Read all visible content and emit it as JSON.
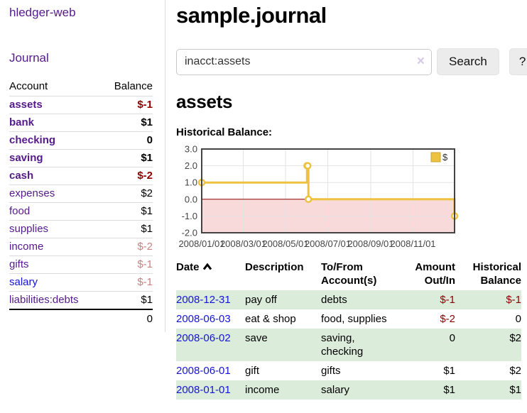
{
  "app": {
    "brand": "hledger-web",
    "nav": {
      "journal": "Journal"
    }
  },
  "sidebar": {
    "header": {
      "account": "Account",
      "balance": "Balance"
    },
    "accounts": [
      {
        "name": "assets",
        "balance": "$-1",
        "depth": 1,
        "matched": true
      },
      {
        "name": "bank",
        "balance": "$1",
        "depth": 2,
        "matched": true
      },
      {
        "name": "checking",
        "balance": "0",
        "depth": 3,
        "matched": true
      },
      {
        "name": "saving",
        "balance": "$1",
        "depth": 3,
        "matched": true
      },
      {
        "name": "cash",
        "balance": "$-2",
        "depth": 2,
        "matched": true
      },
      {
        "name": "expenses",
        "balance": "$2",
        "depth": 1,
        "matched": false
      },
      {
        "name": "food",
        "balance": "$1",
        "depth": 2,
        "matched": false
      },
      {
        "name": "supplies",
        "balance": "$1",
        "depth": 2,
        "matched": false
      },
      {
        "name": "income",
        "balance": "$-2",
        "depth": 1,
        "matched": false
      },
      {
        "name": "gifts",
        "balance": "$-1",
        "depth": 2,
        "matched": false
      },
      {
        "name": "salary",
        "balance": "$-1",
        "depth": 2,
        "matched": false
      },
      {
        "name": "liabilities:debts",
        "balance": "$1",
        "depth": 1,
        "matched": false
      }
    ],
    "total": "0"
  },
  "main": {
    "title": "sample.journal",
    "search": {
      "value": "inacct:assets",
      "clear_icon": "×",
      "search_button": "Search",
      "help_button": "?"
    },
    "account_heading": "assets",
    "chart_label": "Historical Balance:"
  },
  "chart_data": {
    "type": "line",
    "title": "Historical Balance:",
    "step": true,
    "series": [
      {
        "name": "$",
        "points": [
          [
            "2008-01-01",
            1
          ],
          [
            "2008-06-01",
            2
          ],
          [
            "2008-06-02",
            2
          ],
          [
            "2008-06-03",
            0
          ],
          [
            "2008-12-31",
            -1
          ]
        ]
      }
    ],
    "x_ticks": [
      "2008/01/01",
      "2008/03/01",
      "2008/05/01",
      "2008/07/01",
      "2008/09/01",
      "2008/11/01"
    ],
    "y_ticks": [
      3.0,
      2.0,
      1.0,
      0.0,
      -1.0,
      -2.0
    ],
    "xlim": [
      "2008-01-01",
      "2008-12-31"
    ],
    "ylim": [
      -2,
      3
    ],
    "grid": true,
    "legend": {
      "label": "$",
      "position": "top-right"
    },
    "colors": {
      "line": "#edc240",
      "negative_fill": "#f9dada",
      "zero_line": "#8b0000",
      "grid": "#e3e3e3",
      "border": "#434343",
      "legend_box_border": "#c9a42f"
    }
  },
  "transactions": {
    "headers": {
      "date": "Date",
      "sort_icon": "chevron-up",
      "description": "Description",
      "accounts_line1": "To/From",
      "accounts_line2": "Account(s)",
      "amount_line1": "Amount",
      "amount_line2": "Out/In",
      "balance_line1": "Historical",
      "balance_line2": "Balance"
    },
    "rows": [
      {
        "date": "2008-12-31",
        "description": "pay off",
        "accounts": "debts",
        "amount": "$-1",
        "balance": "$-1"
      },
      {
        "date": "2008-06-03",
        "description": "eat & shop",
        "accounts": "food, supplies",
        "amount": "$-2",
        "balance": "0"
      },
      {
        "date": "2008-06-02",
        "description": "save",
        "accounts": "saving, checking",
        "amount": "0",
        "balance": "$2"
      },
      {
        "date": "2008-06-01",
        "description": "gift",
        "accounts": "gifts",
        "amount": "$1",
        "balance": "$2"
      },
      {
        "date": "2008-01-01",
        "description": "income",
        "accounts": "salary",
        "amount": "$1",
        "balance": "$1"
      }
    ]
  },
  "colors": {
    "link_purple": "#551a8b",
    "link_blue": "#1414d2",
    "negative_strong": "#8b0000",
    "negative_soft": "#c58282",
    "row_green": "#dcecdb",
    "button_bg": "#ececec",
    "divider": "#dcdcdc"
  }
}
